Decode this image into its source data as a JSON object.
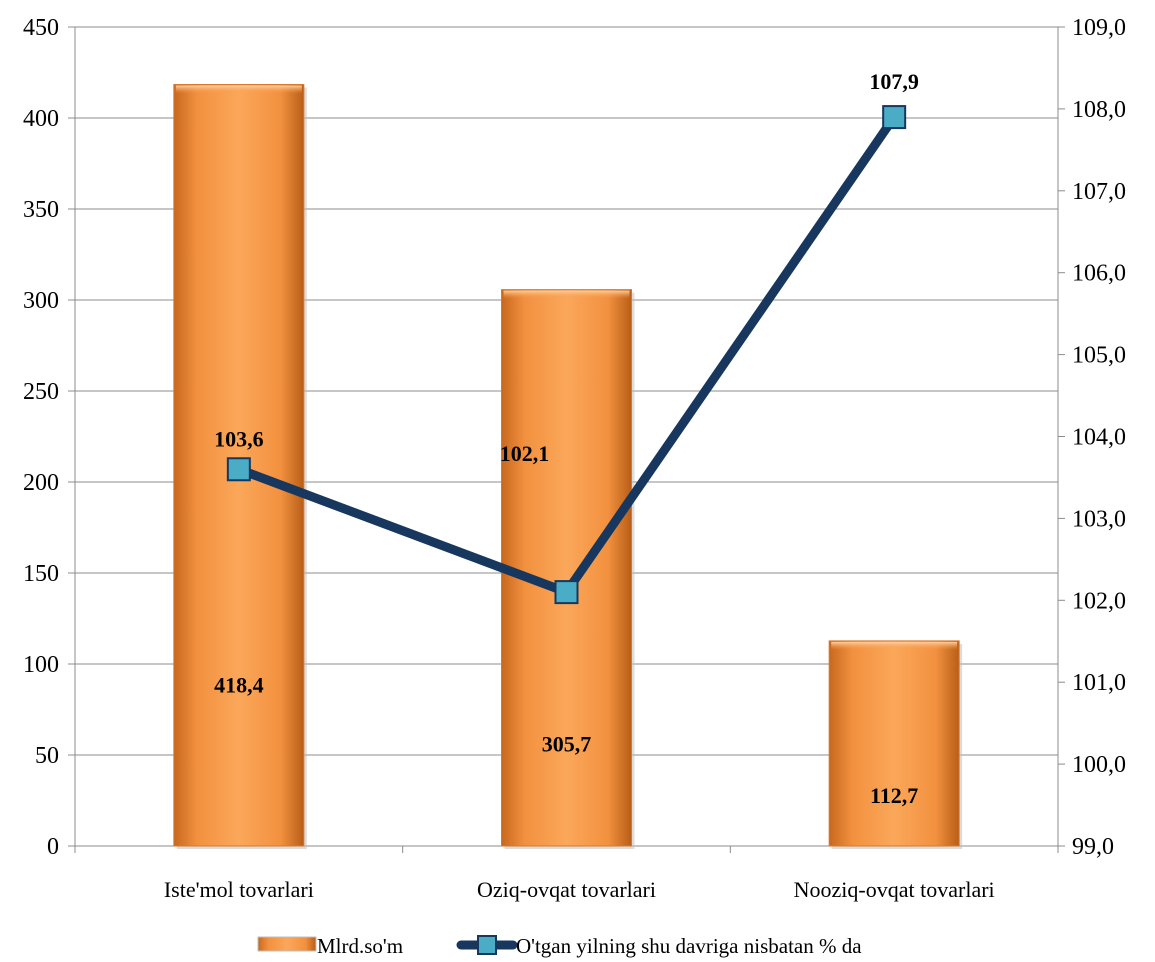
{
  "chart_data": {
    "type": "bar+line",
    "categories": [
      "Iste'mol tovarlari",
      "Oziq-ovqat tovarlari",
      "Nooziq-ovqat tovarlari"
    ],
    "series": [
      {
        "name": "Mlrd.so'm",
        "type": "bar",
        "axis": "left",
        "values": [
          418.4,
          305.7,
          112.7
        ],
        "labels": [
          "418,4",
          "305,7",
          "112,7"
        ],
        "color": "#F79646"
      },
      {
        "name": "O'tgan yilning shu davriga nisbatan % da",
        "type": "line",
        "axis": "right",
        "values": [
          103.6,
          102.1,
          107.9
        ],
        "labels": [
          "103,6",
          "102,1",
          "107,9"
        ],
        "line_color": "#17375E",
        "marker_color": "#4BACC6"
      }
    ],
    "y_left": {
      "min": 0,
      "max": 450,
      "step": 50,
      "ticks": [
        "0",
        "50",
        "100",
        "150",
        "200",
        "250",
        "300",
        "350",
        "400",
        "450"
      ]
    },
    "y_right": {
      "min": 99,
      "max": 109,
      "step": 1,
      "ticks": [
        "99,0",
        "100,0",
        "101,0",
        "102,0",
        "103,0",
        "104,0",
        "105,0",
        "106,0",
        "107,0",
        "108,0",
        "109,0"
      ]
    },
    "grid": true,
    "legend_position": "bottom"
  }
}
